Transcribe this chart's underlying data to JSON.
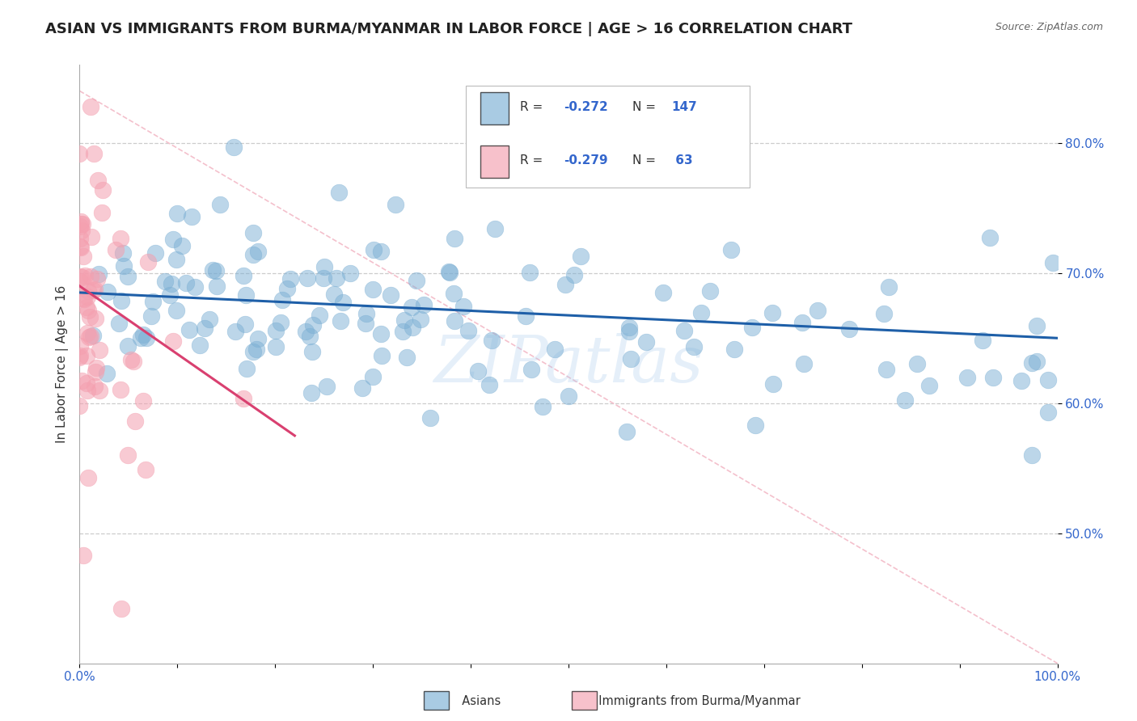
{
  "title": "ASIAN VS IMMIGRANTS FROM BURMA/MYANMAR IN LABOR FORCE | AGE > 16 CORRELATION CHART",
  "source": "Source: ZipAtlas.com",
  "ylabel": "In Labor Force | Age > 16",
  "xlim": [
    0.0,
    1.0
  ],
  "ylim": [
    0.4,
    0.86
  ],
  "yticks": [
    0.5,
    0.6,
    0.7,
    0.8
  ],
  "ytick_labels": [
    "50.0%",
    "60.0%",
    "70.0%",
    "80.0%"
  ],
  "blue_R": -0.272,
  "blue_N": 147,
  "pink_R": -0.279,
  "pink_N": 63,
  "blue_color": "#7BAFD4",
  "pink_color": "#F4A0B0",
  "blue_trend_color": "#1E5FA8",
  "pink_trend_color": "#D94070",
  "diagonal_color": "#F4C0CC",
  "blue_label": "Asians",
  "pink_label": "Immigrants from Burma/Myanmar",
  "watermark": "ZIPatlas",
  "background_color": "#ffffff",
  "grid_color": "#cccccc",
  "title_fontsize": 13,
  "axis_label_fontsize": 11,
  "tick_fontsize": 11,
  "blue_seed": 42,
  "pink_seed": 7
}
